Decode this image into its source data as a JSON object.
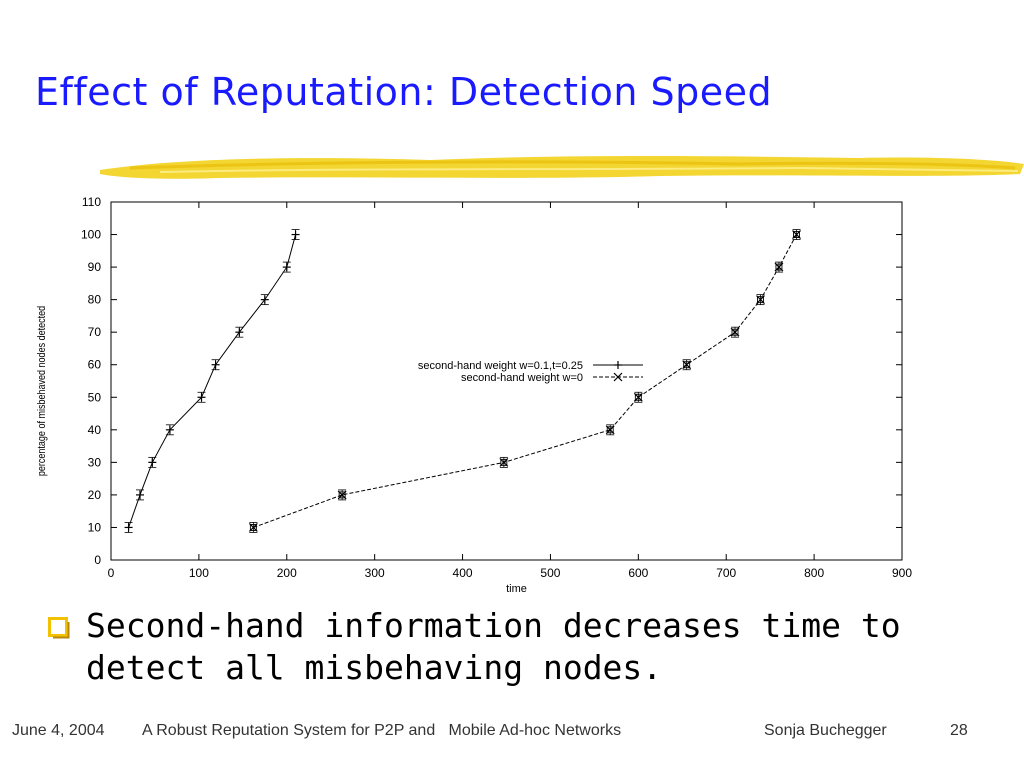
{
  "slide": {
    "title": "Effect of Reputation: Detection Speed",
    "bullet": "Second-hand information decreases time to detect all misbehaving nodes."
  },
  "footer": {
    "date": "June 4, 2004",
    "talk": "A Robust Reputation System for P2P and   Mobile Ad-hoc Networks",
    "author": "Sonja Buchegger",
    "page": "28"
  },
  "colors": {
    "title": "#1a1aff",
    "brush": "#f2d21b",
    "bullet_box": "#f2c200"
  },
  "chart_data": {
    "type": "line",
    "xlabel": "time",
    "ylabel": "percentage of misbehaved nodes detected",
    "xlim": [
      0,
      900
    ],
    "ylim": [
      0,
      110
    ],
    "xticks": [
      0,
      100,
      200,
      300,
      400,
      500,
      600,
      700,
      800,
      900
    ],
    "yticks": [
      0,
      10,
      20,
      30,
      40,
      50,
      60,
      70,
      80,
      90,
      100,
      110
    ],
    "grid": false,
    "legend_position": "center-right",
    "series": [
      {
        "name": "second-hand weight w=0.1,t=0.25",
        "line": "solid",
        "marker": "plus",
        "x": [
          20,
          33,
          47,
          67,
          103,
          119,
          146,
          175,
          200,
          210
        ],
        "y": [
          10,
          20,
          30,
          40,
          50,
          60,
          70,
          80,
          90,
          100
        ]
      },
      {
        "name": "second-hand weight w=0",
        "line": "dashed",
        "marker": "cross",
        "x": [
          162,
          263,
          447,
          568,
          600,
          655,
          710,
          739,
          760,
          780
        ],
        "y": [
          10,
          20,
          30,
          40,
          50,
          60,
          70,
          80,
          90,
          100
        ]
      }
    ]
  }
}
